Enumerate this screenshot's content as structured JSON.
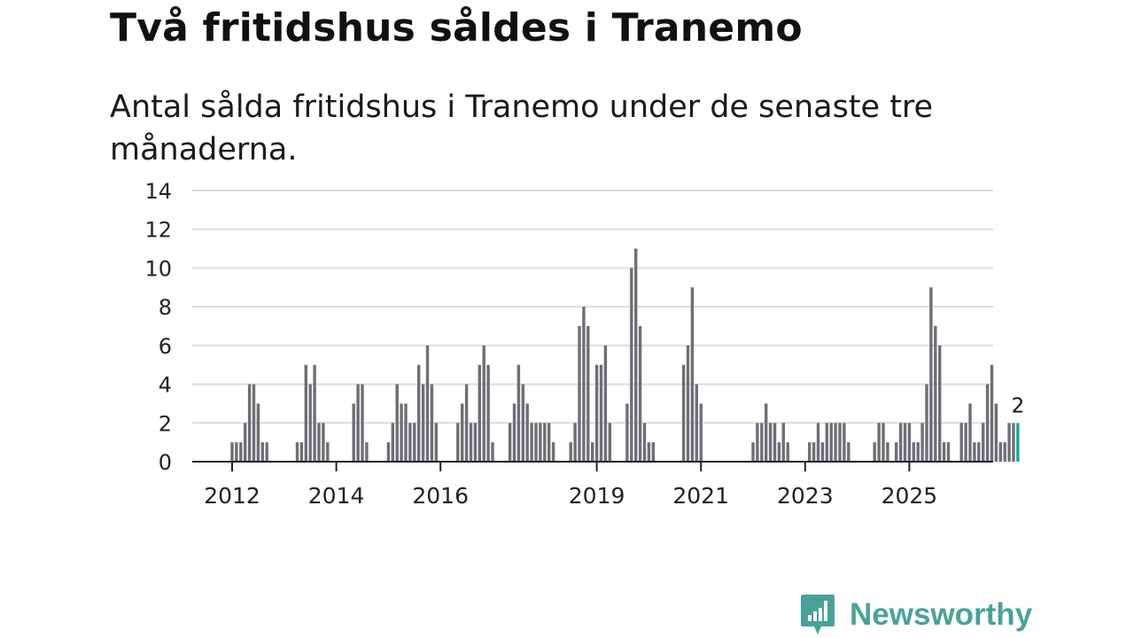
{
  "title": "Två fritidshus såldes i Tranemo",
  "subtitle": "Antal sålda fritidshus i Tranemo under de senaste tre månaderna.",
  "brand": {
    "name": "Newsworthy",
    "color": "#4aa19a"
  },
  "chart_data": {
    "type": "bar",
    "title": "Två fritidshus såldes i Tranemo",
    "xlabel": "",
    "ylabel": "",
    "ylim": [
      0,
      14
    ],
    "yticks": [
      0,
      2,
      4,
      6,
      8,
      10,
      12,
      14
    ],
    "xticks": [
      {
        "label": "2012",
        "month_index": 0
      },
      {
        "label": "2014",
        "month_index": 24
      },
      {
        "label": "2016",
        "month_index": 48
      },
      {
        "label": "2019",
        "month_index": 84
      },
      {
        "label": "2021",
        "month_index": 108
      },
      {
        "label": "2023",
        "month_index": 132
      },
      {
        "label": "2025",
        "month_index": 156
      }
    ],
    "start": "2012-01",
    "bar_color": "#6e6e75",
    "highlight_color": "#1aa39a",
    "highlight_label": "2",
    "values": [
      1,
      1,
      1,
      2,
      4,
      4,
      3,
      1,
      1,
      0,
      0,
      0,
      0,
      0,
      0,
      1,
      1,
      5,
      4,
      5,
      2,
      2,
      1,
      0,
      0,
      0,
      0,
      0,
      3,
      4,
      4,
      1,
      0,
      0,
      0,
      0,
      1,
      2,
      4,
      3,
      3,
      2,
      2,
      5,
      4,
      6,
      4,
      2,
      0,
      0,
      0,
      0,
      2,
      3,
      4,
      2,
      2,
      5,
      6,
      5,
      1,
      0,
      0,
      0,
      2,
      3,
      5,
      4,
      3,
      2,
      2,
      2,
      2,
      2,
      1,
      0,
      0,
      0,
      1,
      2,
      7,
      8,
      7,
      1,
      5,
      5,
      6,
      2,
      0,
      0,
      0,
      3,
      10,
      11,
      7,
      2,
      1,
      1,
      0,
      0,
      0,
      0,
      0,
      0,
      5,
      6,
      9,
      4,
      3,
      0,
      0,
      0,
      0,
      0,
      0,
      0,
      0,
      0,
      0,
      0,
      1,
      2,
      2,
      3,
      2,
      2,
      1,
      2,
      1,
      0,
      0,
      0,
      0,
      1,
      1,
      2,
      1,
      2,
      2,
      2,
      2,
      2,
      1,
      0,
      0,
      0,
      0,
      0,
      1,
      2,
      2,
      1,
      0,
      1,
      2,
      2,
      2,
      1,
      1,
      2,
      4,
      9,
      7,
      6,
      1,
      1,
      0,
      0,
      2,
      2,
      3,
      1,
      1,
      2,
      4,
      5,
      3,
      1,
      1,
      2,
      2,
      2
    ]
  }
}
